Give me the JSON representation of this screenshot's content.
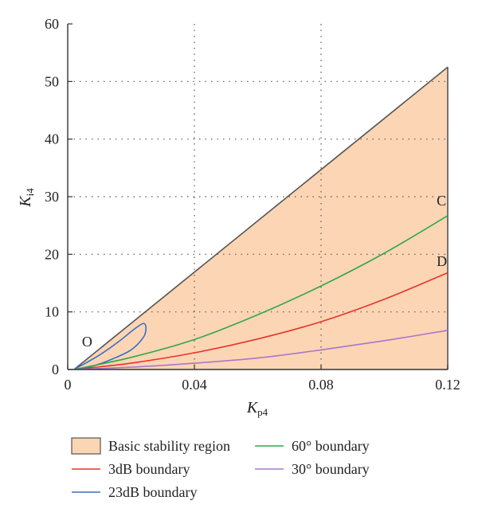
{
  "chart_data": {
    "type": "line",
    "xlabel": "K",
    "xlabel_sub": "p4",
    "ylabel": "K",
    "ylabel_sub": "i4",
    "xlim": [
      0,
      0.12
    ],
    "ylim": [
      0,
      60
    ],
    "xticks": [
      0,
      0.04,
      0.08,
      0.12
    ],
    "xtick_labels": [
      "0",
      "0.04",
      "0.08",
      "0.12"
    ],
    "yticks": [
      0,
      10,
      20,
      30,
      40,
      50,
      60
    ],
    "ytick_labels": [
      "0",
      "10",
      "20",
      "30",
      "40",
      "50",
      "60"
    ],
    "grid": "dotted",
    "region": {
      "name": "Basic stability region",
      "color": "#fcd5b5",
      "edge_color": "#555555",
      "boundary": [
        {
          "x": 0.002,
          "y": 0
        },
        {
          "x": 0.12,
          "y": 52.5
        },
        {
          "x": 0.12,
          "y": 0
        }
      ]
    },
    "series": [
      {
        "name": "3dB boundary",
        "color": "#e8332a",
        "points": [
          {
            "x": 0.002,
            "y": 0
          },
          {
            "x": 0.02,
            "y": 1.1
          },
          {
            "x": 0.04,
            "y": 2.9
          },
          {
            "x": 0.06,
            "y": 5.3
          },
          {
            "x": 0.08,
            "y": 8.3
          },
          {
            "x": 0.1,
            "y": 12.2
          },
          {
            "x": 0.12,
            "y": 16.8
          }
        ]
      },
      {
        "name": "23dB boundary",
        "color": "#3a6cc8",
        "points": [
          {
            "x": 0.002,
            "y": 0
          },
          {
            "x": 0.01,
            "y": 2.5
          },
          {
            "x": 0.016,
            "y": 4.8
          },
          {
            "x": 0.021,
            "y": 7.0
          },
          {
            "x": 0.024,
            "y": 8.0
          },
          {
            "x": 0.0247,
            "y": 7.0
          },
          {
            "x": 0.0238,
            "y": 5.5
          },
          {
            "x": 0.02,
            "y": 3.4
          },
          {
            "x": 0.014,
            "y": 1.8
          },
          {
            "x": 0.008,
            "y": 0.6
          },
          {
            "x": 0.002,
            "y": 0
          }
        ]
      },
      {
        "name": "60° boundary",
        "color": "#2ea84a",
        "points": [
          {
            "x": 0.002,
            "y": 0
          },
          {
            "x": 0.02,
            "y": 2.1
          },
          {
            "x": 0.04,
            "y": 5.2
          },
          {
            "x": 0.06,
            "y": 9.5
          },
          {
            "x": 0.08,
            "y": 14.5
          },
          {
            "x": 0.1,
            "y": 20.2
          },
          {
            "x": 0.12,
            "y": 26.7
          }
        ]
      },
      {
        "name": "30° boundary",
        "color": "#a878c8",
        "points": [
          {
            "x": 0.002,
            "y": 0
          },
          {
            "x": 0.02,
            "y": 0.4
          },
          {
            "x": 0.04,
            "y": 1.1
          },
          {
            "x": 0.06,
            "y": 2.0
          },
          {
            "x": 0.08,
            "y": 3.4
          },
          {
            "x": 0.1,
            "y": 5.0
          },
          {
            "x": 0.12,
            "y": 6.8
          }
        ]
      }
    ],
    "annotations": [
      {
        "text": "O",
        "x": 0.0045,
        "y": 4.0
      },
      {
        "text": "C",
        "x": 0.1165,
        "y": 28.5
      },
      {
        "text": "D",
        "x": 0.1165,
        "y": 18.0
      }
    ],
    "legend": {
      "placement": "bottom",
      "items": [
        {
          "label": "Basic stability region",
          "kind": "patch",
          "color": "#fcd5b5"
        },
        {
          "label": "60° boundary",
          "kind": "line",
          "color": "#2ea84a"
        },
        {
          "label": "3dB boundary",
          "kind": "line",
          "color": "#e8332a"
        },
        {
          "label": "30° boundary",
          "kind": "line",
          "color": "#a878c8"
        },
        {
          "label": "23dB boundary",
          "kind": "line",
          "color": "#3a6cc8"
        }
      ]
    }
  }
}
